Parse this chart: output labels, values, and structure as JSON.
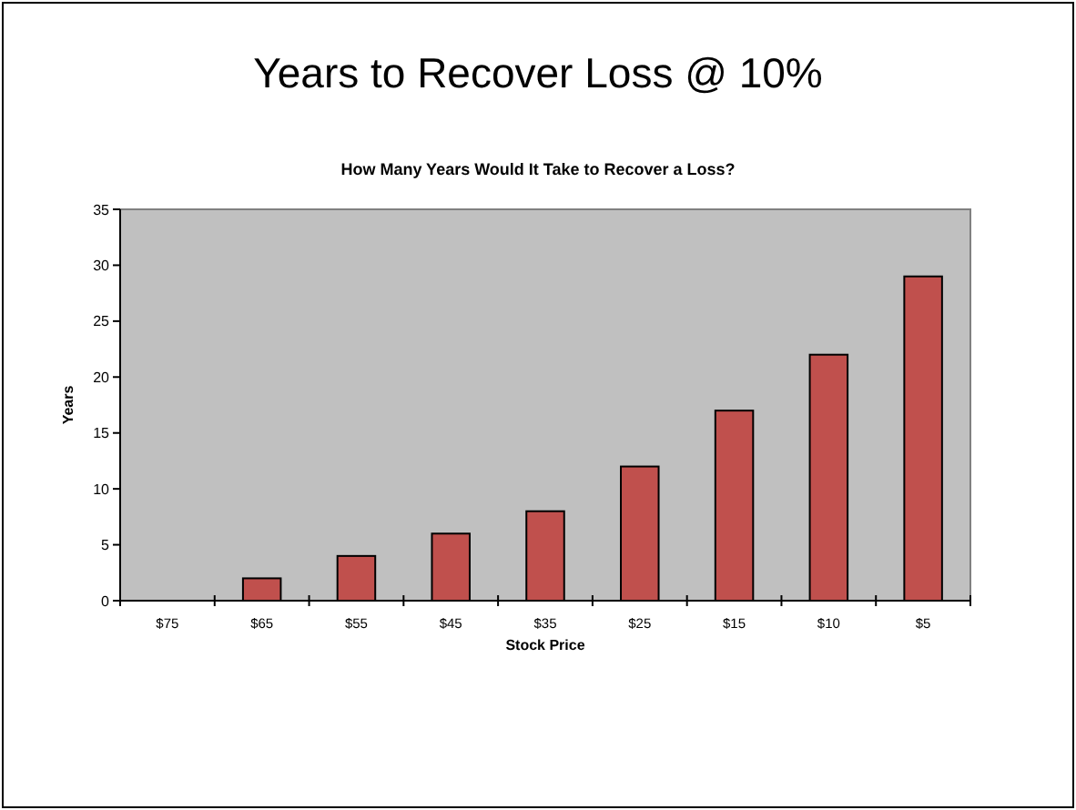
{
  "chart_data": {
    "type": "bar",
    "title": "Years to Recover Loss @ 10%",
    "subtitle": "How Many Years Would It Take to Recover a Loss?",
    "xlabel": "Stock Price",
    "ylabel": "Years",
    "categories": [
      "$75",
      "$65",
      "$55",
      "$45",
      "$35",
      "$25",
      "$15",
      "$10",
      "$5"
    ],
    "values": [
      0,
      2,
      4,
      6,
      8,
      12,
      17,
      22,
      29
    ],
    "color": "#c0504d",
    "ylim": [
      0,
      35
    ],
    "yticks": [
      0,
      5,
      10,
      15,
      20,
      25,
      30,
      35
    ],
    "grid": false
  }
}
